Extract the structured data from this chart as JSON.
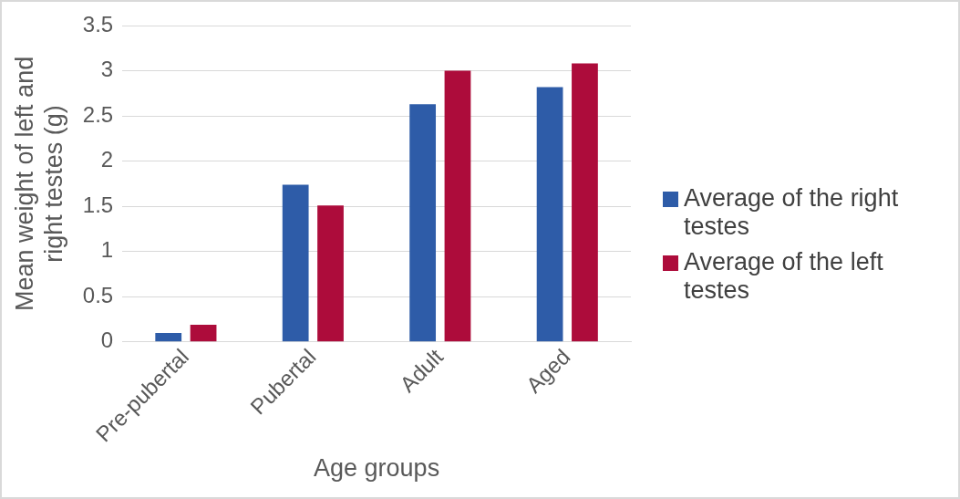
{
  "chart_data": {
    "type": "bar",
    "xlabel": "Age groups",
    "ylabel": "Mean weight of left and right testes (g)",
    "categories": [
      "Pre-pubertal",
      "Pubertal",
      "Adult",
      "Aged"
    ],
    "series": [
      {
        "name": "Average of the right testes",
        "color": "#2e5ca8",
        "values": [
          0.1,
          1.74,
          2.63,
          2.82
        ]
      },
      {
        "name": "Average of the left testes",
        "color": "#ad0c3b",
        "values": [
          0.19,
          1.51,
          3.0,
          3.08
        ]
      }
    ],
    "ylim": [
      0,
      3.5
    ],
    "yticks": [
      0,
      0.5,
      1,
      1.5,
      2,
      2.5,
      3,
      3.5
    ],
    "grid": "y",
    "legend": "right"
  }
}
